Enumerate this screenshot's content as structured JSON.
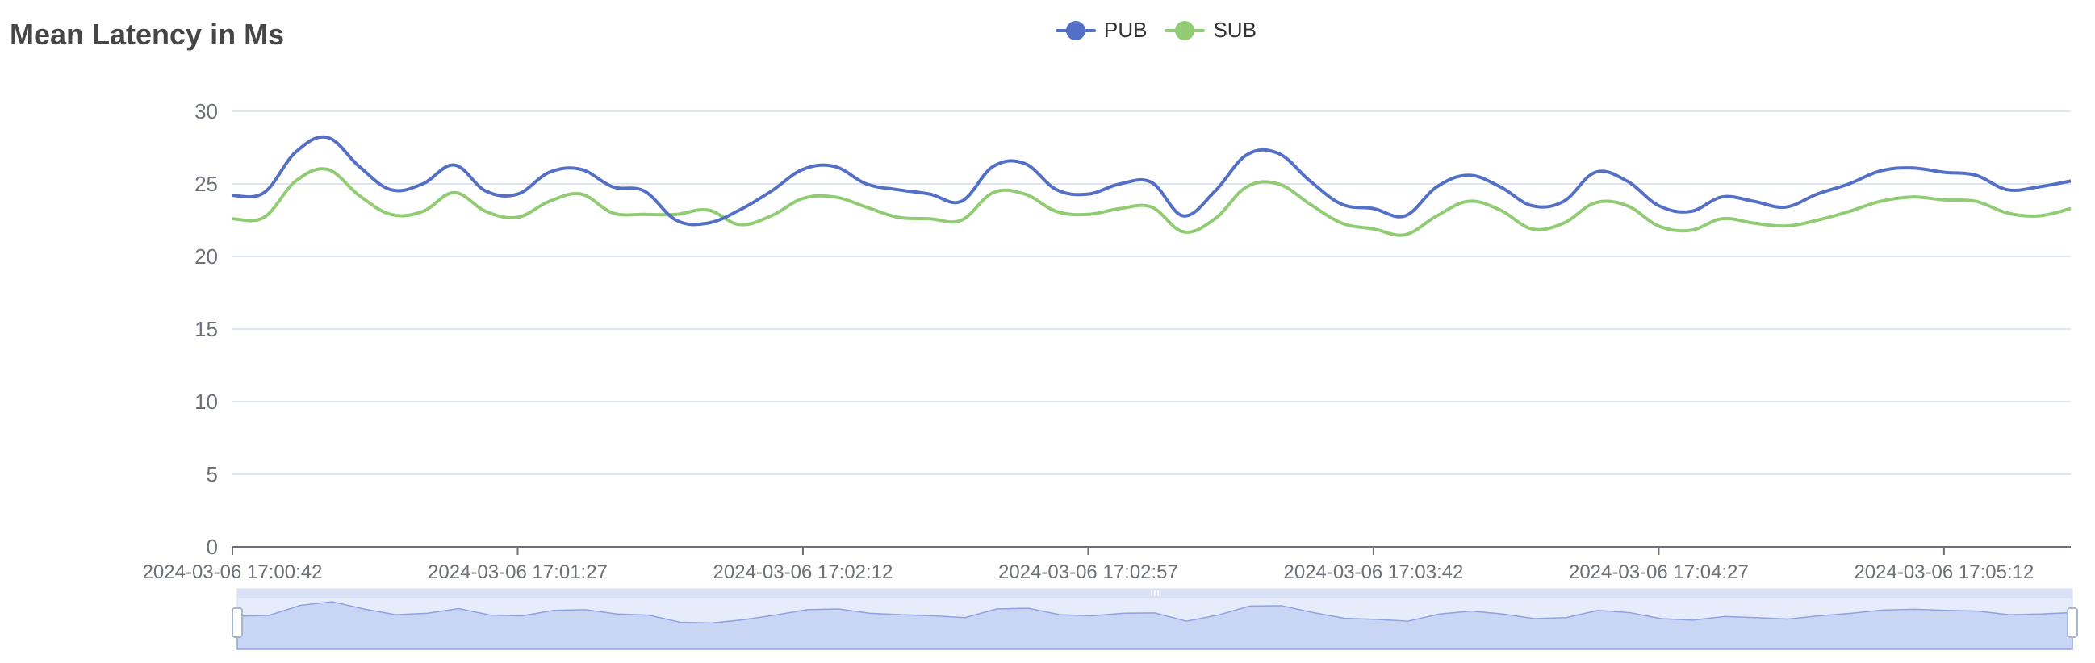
{
  "colors": {
    "pub": "#5470c6",
    "sub": "#91cc75",
    "axis": "#6e7079",
    "grid": "#e0e6f1"
  },
  "chart_data": {
    "type": "line",
    "title": "Mean Latency in Ms",
    "legend_position": "top-center",
    "grid": true,
    "ylim": [
      0,
      30
    ],
    "yticks": [
      0,
      5,
      10,
      15,
      20,
      25,
      30
    ],
    "xticks": [
      "2024-03-06 17:00:42",
      "2024-03-06 17:01:27",
      "2024-03-06 17:02:12",
      "2024-03-06 17:02:57",
      "2024-03-06 17:03:42",
      "2024-03-06 17:04:27",
      "2024-03-06 17:05:12"
    ],
    "x_start": "2024-03-06 17:00:42",
    "x_step_seconds": 5,
    "series": [
      {
        "name": "PUB",
        "values": [
          24.2,
          24.4,
          27.2,
          28.2,
          26.2,
          24.6,
          25.0,
          26.3,
          24.5,
          24.3,
          25.8,
          26.0,
          24.8,
          24.5,
          22.5,
          22.3,
          23.2,
          24.5,
          26.0,
          26.2,
          25.0,
          24.6,
          24.3,
          23.8,
          26.2,
          26.4,
          24.6,
          24.3,
          25.0,
          25.1,
          22.8,
          24.5,
          27.0,
          27.1,
          25.2,
          23.6,
          23.3,
          22.8,
          24.8,
          25.6,
          24.8,
          23.5,
          23.8,
          25.8,
          25.2,
          23.5,
          23.1,
          24.1,
          23.8,
          23.4,
          24.3,
          25.0,
          25.9,
          26.1,
          25.8,
          25.6,
          24.6,
          24.8,
          25.2
        ]
      },
      {
        "name": "SUB",
        "values": [
          22.6,
          22.7,
          25.2,
          26.0,
          24.2,
          22.9,
          23.1,
          24.4,
          23.1,
          22.7,
          23.8,
          24.3,
          23.0,
          22.9,
          22.9,
          23.2,
          22.2,
          22.8,
          24.0,
          24.1,
          23.4,
          22.7,
          22.6,
          22.5,
          24.4,
          24.3,
          23.1,
          22.9,
          23.3,
          23.4,
          21.7,
          22.6,
          24.8,
          25.0,
          23.6,
          22.3,
          21.9,
          21.5,
          22.8,
          23.8,
          23.2,
          21.9,
          22.3,
          23.7,
          23.5,
          22.1,
          21.8,
          22.6,
          22.3,
          22.1,
          22.5,
          23.1,
          23.8,
          24.1,
          23.9,
          23.8,
          23.0,
          22.8,
          23.3
        ]
      }
    ]
  }
}
